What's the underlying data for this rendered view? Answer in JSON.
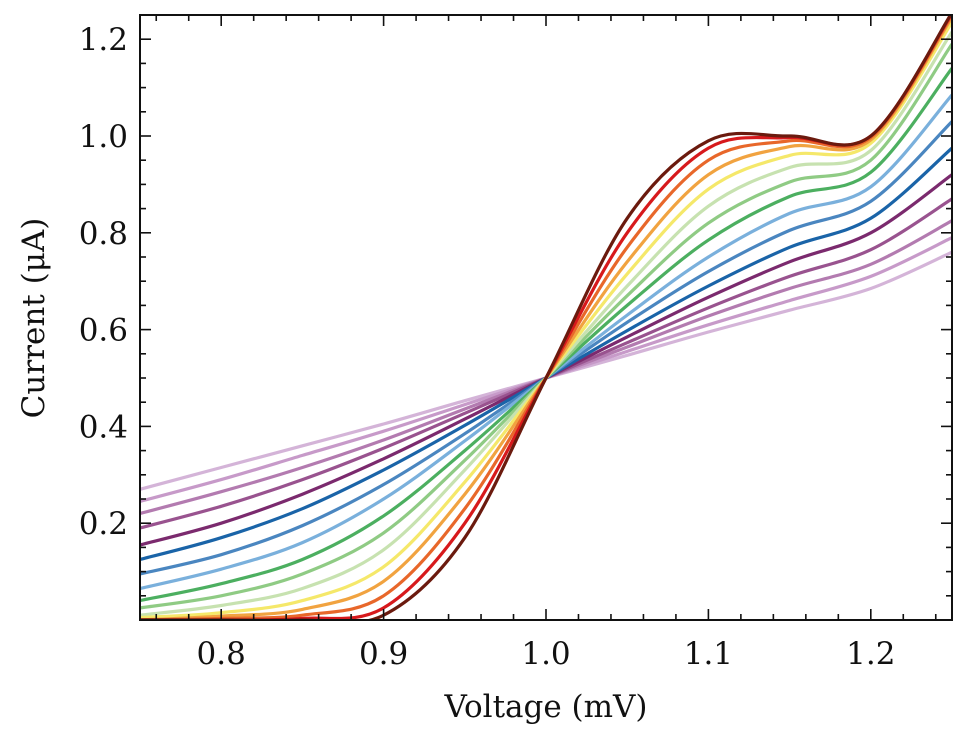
{
  "chart_data": {
    "type": "line",
    "xlabel": "Voltage (mV)",
    "ylabel": "Current (μA)",
    "xlim": [
      0.75,
      1.25
    ],
    "ylim": [
      0.0,
      1.25
    ],
    "x_ticks": [
      0.8,
      0.9,
      1.0,
      1.1,
      1.2
    ],
    "x_tick_labels": [
      "0.8",
      "0.9",
      "1.0",
      "1.1",
      "1.2"
    ],
    "y_ticks": [
      0.2,
      0.4,
      0.6,
      0.8,
      1.0,
      1.2
    ],
    "y_tick_labels": [
      "0.2",
      "0.4",
      "0.6",
      "0.8",
      "1.0",
      "1.2"
    ],
    "grid": false,
    "legend": "none",
    "x": [
      0.75,
      0.8,
      0.85,
      0.9,
      0.95,
      1.0,
      1.05,
      1.1,
      1.15,
      1.2,
      1.25
    ],
    "series": [
      {
        "color": "#d4b4d8",
        "values": [
          0.27,
          0.315,
          0.36,
          0.405,
          0.453,
          0.5,
          0.547,
          0.595,
          0.64,
          0.685,
          0.76
        ]
      },
      {
        "color": "#c79ac9",
        "values": [
          0.245,
          0.29,
          0.34,
          0.39,
          0.445,
          0.5,
          0.555,
          0.61,
          0.66,
          0.71,
          0.79
        ]
      },
      {
        "color": "#b37bb0",
        "values": [
          0.22,
          0.265,
          0.315,
          0.372,
          0.436,
          0.5,
          0.564,
          0.628,
          0.685,
          0.735,
          0.825
        ]
      },
      {
        "color": "#99538f",
        "values": [
          0.19,
          0.235,
          0.29,
          0.355,
          0.427,
          0.5,
          0.573,
          0.645,
          0.71,
          0.765,
          0.87
        ]
      },
      {
        "color": "#7b2a6e",
        "values": [
          0.155,
          0.2,
          0.26,
          0.333,
          0.415,
          0.5,
          0.585,
          0.667,
          0.74,
          0.8,
          0.92
        ]
      },
      {
        "color": "#1a64a8",
        "values": [
          0.125,
          0.17,
          0.23,
          0.31,
          0.402,
          0.5,
          0.598,
          0.69,
          0.77,
          0.83,
          0.975
        ]
      },
      {
        "color": "#4a86c0",
        "values": [
          0.095,
          0.135,
          0.195,
          0.28,
          0.385,
          0.5,
          0.615,
          0.72,
          0.805,
          0.865,
          1.03
        ]
      },
      {
        "color": "#7ab0dc",
        "values": [
          0.065,
          0.105,
          0.16,
          0.25,
          0.37,
          0.5,
          0.63,
          0.75,
          0.84,
          0.895,
          1.085
        ]
      },
      {
        "color": "#4caf60",
        "values": [
          0.04,
          0.075,
          0.125,
          0.215,
          0.35,
          0.5,
          0.65,
          0.785,
          0.875,
          0.925,
          1.14
        ]
      },
      {
        "color": "#8fcb84",
        "values": [
          0.025,
          0.05,
          0.095,
          0.18,
          0.33,
          0.5,
          0.67,
          0.82,
          0.905,
          0.95,
          1.19
        ]
      },
      {
        "color": "#c7e2b0",
        "values": [
          0.01,
          0.03,
          0.065,
          0.145,
          0.31,
          0.5,
          0.69,
          0.855,
          0.935,
          0.97,
          1.215
        ]
      },
      {
        "color": "#f5e86a",
        "values": [
          0.005,
          0.015,
          0.04,
          0.11,
          0.285,
          0.5,
          0.715,
          0.89,
          0.96,
          0.985,
          1.235
        ]
      },
      {
        "color": "#f1a340",
        "values": [
          0.0,
          0.008,
          0.022,
          0.08,
          0.26,
          0.5,
          0.74,
          0.92,
          0.978,
          0.992,
          1.245
        ]
      },
      {
        "color": "#e8672a",
        "values": [
          0.0,
          0.003,
          0.01,
          0.05,
          0.23,
          0.5,
          0.77,
          0.95,
          0.99,
          0.997,
          1.25
        ]
      },
      {
        "color": "#d7191c",
        "values": [
          0.0,
          0.0,
          0.003,
          0.025,
          0.2,
          0.5,
          0.8,
          0.975,
          0.997,
          1.0,
          1.253
        ]
      },
      {
        "color": "#6b1a0e",
        "values": [
          0.0,
          0.0,
          0.0,
          0.01,
          0.17,
          0.5,
          0.83,
          0.99,
          1.0,
          1.0,
          1.255
        ]
      }
    ]
  }
}
